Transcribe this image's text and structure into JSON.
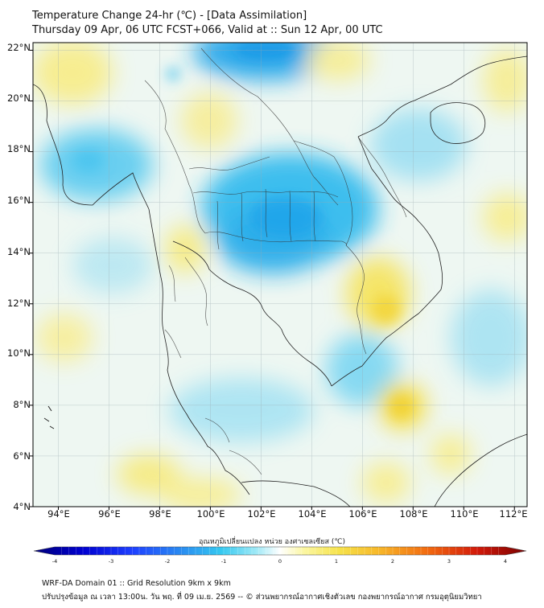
{
  "header": {
    "title": "Temperature Change 24-hr (℃) - [Data Assimilation]",
    "subtitle": "Thursday 09 Apr, 06 UTC FCST+066, Valid at :: Sun 12 Apr, 00 UTC"
  },
  "map": {
    "lat_labels": [
      "22°N",
      "20°N",
      "18°N",
      "16°N",
      "14°N",
      "12°N",
      "10°N",
      "8°N",
      "6°N",
      "4°N"
    ],
    "lon_labels": [
      "94°E",
      "96°E",
      "98°E",
      "100°E",
      "102°E",
      "104°E",
      "106°E",
      "108°E",
      "110°E",
      "112°E"
    ],
    "lat_range": [
      4,
      22.3
    ],
    "lon_range": [
      93,
      112.5
    ],
    "field_cool_color": "#2fb4ec",
    "field_warm_color": "#f5e86a",
    "border_color": "#222222"
  },
  "colorbar": {
    "label": "อุณหภูมิเปลี่ยนแปลง หน่วย องศาเซลเซียส (℃)",
    "ticks": [
      "-4",
      "-3",
      "-2",
      "-1",
      "0",
      "1",
      "2",
      "3",
      "4"
    ],
    "range": [
      -4,
      4
    ],
    "colors": [
      "#00007a",
      "#0000d0",
      "#1e40ff",
      "#2a8cf0",
      "#35c8f0",
      "#9ce8f6",
      "#ffffff",
      "#fbf6a0",
      "#f6e24a",
      "#f7b82a",
      "#f26a10",
      "#d21a0a",
      "#7a0000"
    ]
  },
  "footer": {
    "line1": "WRF-DA Domain 01 :: Grid Resolution 9km x 9km",
    "line2": "ปรับปรุงข้อมูล ณ เวลา 13:00น. วัน พฤ. ที่ 09 เม.ย. 2569 -- © ส่วนพยากรณ์อากาศเชิงตัวเลข กองพยากรณ์อากาศ กรมอุตุนิยมวิทยา"
  }
}
